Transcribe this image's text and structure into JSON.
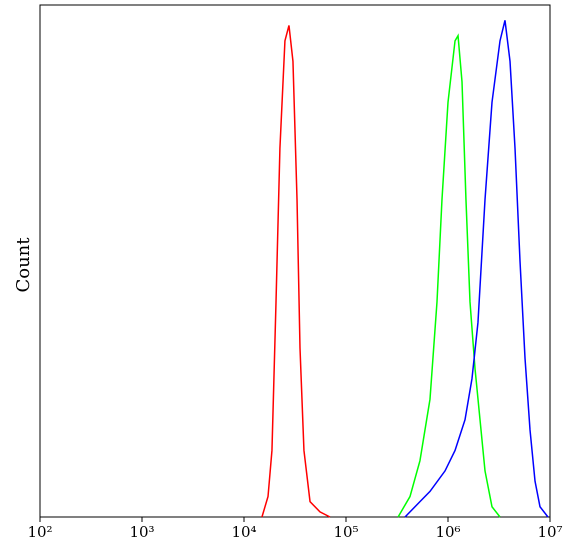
{
  "chart_data": {
    "type": "line",
    "y_label": "Count",
    "xscale": "log",
    "xlim": [
      100,
      10000000
    ],
    "ylim": [
      0,
      100
    ],
    "xticks": [
      {
        "value": 100,
        "label": "10²"
      },
      {
        "value": 1000,
        "label": "10³"
      },
      {
        "value": 10000,
        "label": "10⁴"
      },
      {
        "value": 100000,
        "label": "10⁵"
      },
      {
        "value": 1000000,
        "label": "10⁶"
      },
      {
        "value": 10000000,
        "label": "10⁷"
      }
    ],
    "series": [
      {
        "color": "#ff0000",
        "x": [
          15000,
          17200,
          18800,
          20600,
          22500,
          25200,
          27600,
          30200,
          33100,
          35400,
          38700,
          44400,
          55600,
          69700
        ],
        "values": [
          0,
          4,
          13,
          42,
          72,
          93,
          96,
          89,
          62,
          33,
          13,
          3,
          1,
          0
        ]
      },
      {
        "color": "#00ff00",
        "x": [
          324000,
          424000,
          531000,
          666000,
          780000,
          873000,
          1000000,
          1172000,
          1254000,
          1372000,
          1500000,
          1643000,
          1840000,
          2060000,
          2306000,
          2700000,
          3235000
        ],
        "values": [
          0,
          4,
          11,
          23,
          42,
          62,
          81,
          93,
          94,
          85,
          62,
          42,
          29,
          19,
          9,
          2,
          0
        ]
      },
      {
        "color": "#0000ff",
        "x": [
          379000,
          531000,
          666000,
          935000,
          1172000,
          1468000,
          1718000,
          1967000,
          2306000,
          2700000,
          3235000,
          3620000,
          4055000,
          4540000,
          5080000,
          5690000,
          6370000,
          7130000,
          7980000,
          9550000
        ],
        "values": [
          0,
          3,
          5,
          9,
          13,
          19,
          27,
          38,
          62,
          81,
          93,
          97,
          89,
          72,
          50,
          31,
          17,
          7,
          2,
          0
        ]
      }
    ]
  }
}
